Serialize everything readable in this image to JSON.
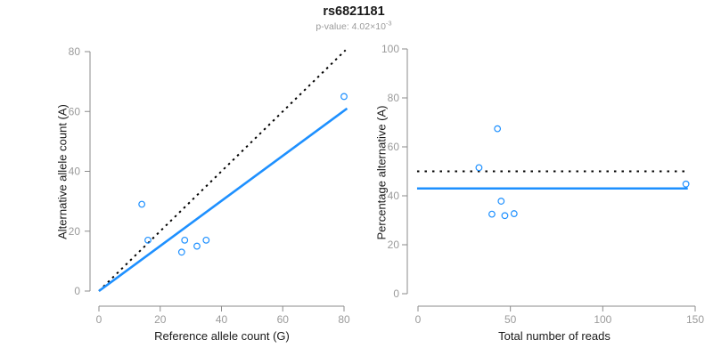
{
  "header": {
    "title": "rs6821181",
    "pvalue_prefix": "p-value: 4.02×10",
    "pvalue_exponent": "-3"
  },
  "colors": {
    "accent_blue": "#1E90FF",
    "line_black": "#000000",
    "axis_gray": "#8B8B8B",
    "tick_label_gray": "#9A9A9A",
    "text_black": "#1A1A1A",
    "subtitle_gray": "#9A9A9A"
  },
  "chart_data": [
    {
      "type": "scatter",
      "title": "rs6821181",
      "subtitle": "p-value: 4.02×10^-3",
      "xlabel": "Reference allele count (G)",
      "ylabel": "Alternative allele count (A)",
      "xlim": [
        0,
        80
      ],
      "ylim": [
        0,
        80
      ],
      "xticks": [
        0,
        20,
        40,
        60,
        80
      ],
      "yticks": [
        0,
        20,
        40,
        60,
        80
      ],
      "grid": false,
      "legend": null,
      "points": [
        [
          14,
          29
        ],
        [
          16,
          17
        ],
        [
          27,
          13
        ],
        [
          28,
          17
        ],
        [
          32,
          15
        ],
        [
          35,
          17
        ],
        [
          80,
          65
        ]
      ],
      "lines": [
        {
          "name": "identity-line",
          "style": "dotted",
          "color": "#000000",
          "from": [
            0,
            0
          ],
          "to": [
            80.5,
            80.5
          ]
        },
        {
          "name": "fit-line",
          "style": "solid",
          "color": "#1E90FF",
          "from": [
            0,
            0
          ],
          "to": [
            81,
            61
          ]
        }
      ]
    },
    {
      "type": "scatter",
      "xlabel": "Total number of reads",
      "ylabel": "Percentage alternative (A)",
      "xlim": [
        0,
        150
      ],
      "ylim": [
        0,
        100
      ],
      "xticks": [
        0,
        50,
        100,
        150
      ],
      "yticks": [
        0,
        20,
        40,
        60,
        80,
        100
      ],
      "grid": false,
      "legend": null,
      "points": [
        [
          43,
          67.4
        ],
        [
          33,
          51.5
        ],
        [
          40,
          32.5
        ],
        [
          45,
          37.8
        ],
        [
          47,
          31.9
        ],
        [
          52,
          32.7
        ],
        [
          145,
          44.8
        ]
      ],
      "lines": [
        {
          "name": "expected-50pct-line",
          "style": "dotted",
          "color": "#000000",
          "from": [
            -0.5,
            50
          ],
          "to": [
            145.5,
            50
          ]
        },
        {
          "name": "mean-pct-line",
          "style": "solid",
          "color": "#1E90FF",
          "from": [
            -0.5,
            43
          ],
          "to": [
            146,
            43
          ]
        }
      ]
    }
  ]
}
